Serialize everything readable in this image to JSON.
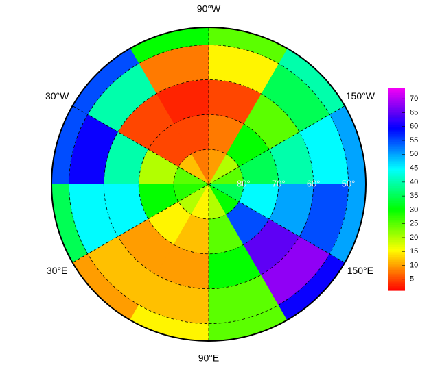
{
  "map": {
    "field": {
      "lat_edges": [
        90,
        80,
        70,
        60,
        50,
        45
      ],
      "lon_edges": [
        -180,
        -150,
        -120,
        -90,
        -60,
        -30,
        0,
        30,
        60,
        90,
        120,
        150,
        180
      ],
      "values": [
        [
          25,
          20,
          10,
          8,
          12,
          25,
          28,
          20,
          15,
          20,
          30,
          35
        ],
        [
          35,
          30,
          8,
          5,
          5,
          20,
          30,
          15,
          12,
          25,
          55,
          45
        ],
        [
          40,
          25,
          5,
          3,
          5,
          40,
          45,
          10,
          10,
          30,
          65,
          50
        ],
        [
          45,
          35,
          15,
          8,
          40,
          60,
          45,
          12,
          12,
          25,
          68,
          55
        ],
        [
          50,
          40,
          25,
          30,
          55,
          55,
          35,
          10,
          15,
          25,
          60,
          50
        ]
      ]
    },
    "lon_labels": [
      {
        "value": -90,
        "label": "90°W"
      },
      {
        "value": -30,
        "label": "30°W"
      },
      {
        "value": -150,
        "label": "150°W"
      },
      {
        "value": 30,
        "label": "30°E"
      },
      {
        "value": 150,
        "label": "150°E"
      },
      {
        "value": 90,
        "label": "90°E"
      }
    ],
    "lat_labels": [
      {
        "value": 80,
        "label": "80°"
      },
      {
        "value": 70,
        "label": "70°"
      },
      {
        "value": 60,
        "label": "60°"
      },
      {
        "value": 50,
        "label": "50°"
      }
    ],
    "colorbar": {
      "lim": [
        1,
        74
      ],
      "ticks": [
        5,
        10,
        15,
        20,
        25,
        30,
        35,
        40,
        45,
        50,
        55,
        60,
        65,
        70
      ]
    }
  }
}
